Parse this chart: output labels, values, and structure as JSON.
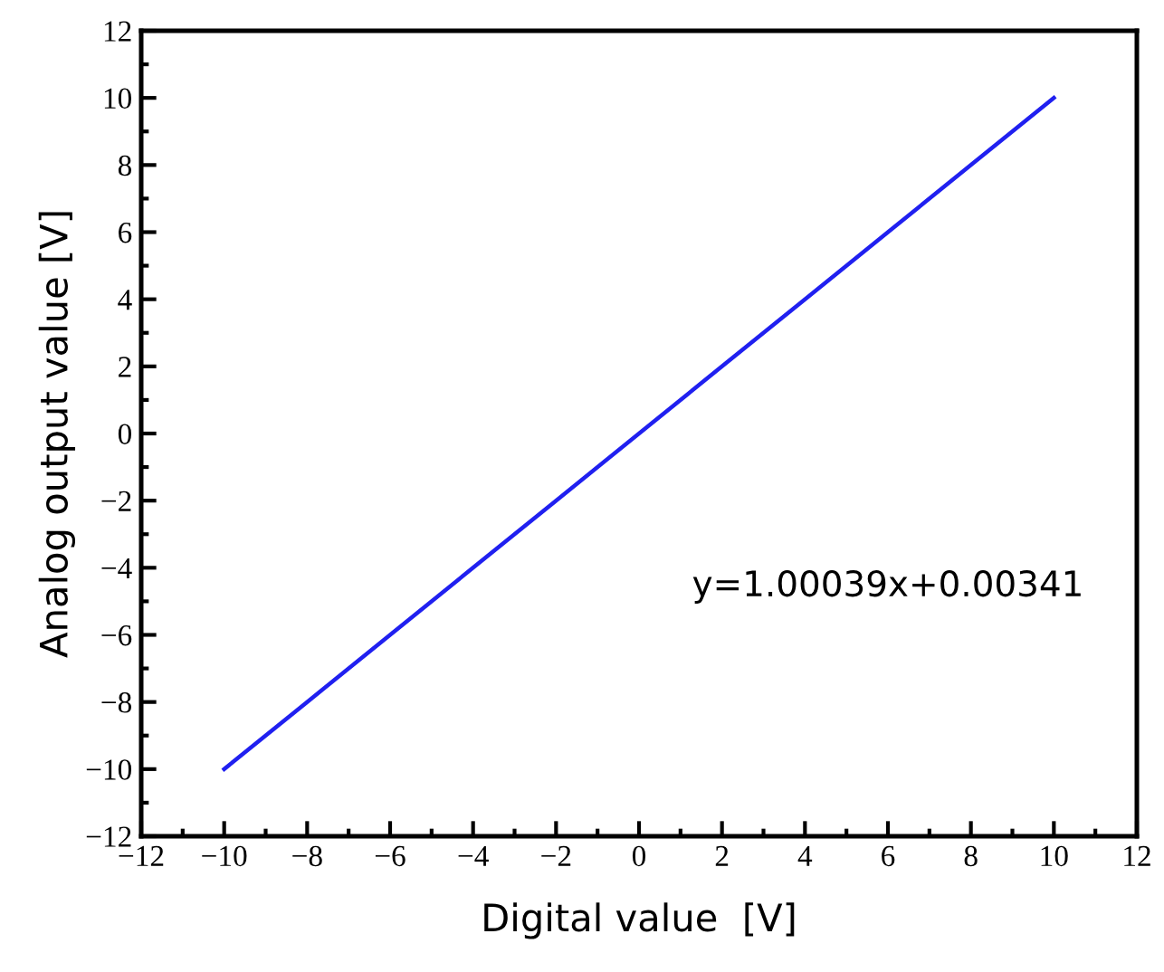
{
  "chart_data": {
    "type": "line",
    "xlabel": "Digital value  [V]",
    "ylabel": "Analog output value [V]",
    "x": [
      -10,
      -8,
      -6,
      -4,
      -2,
      0,
      2,
      4,
      6,
      8,
      10
    ],
    "series": [
      {
        "color": "#2020f0",
        "values": [
          -10,
          -8,
          -6,
          -4,
          -2,
          0,
          2,
          4,
          6,
          8,
          10
        ]
      }
    ],
    "annotations": [
      "y=1.00039x+0.00341"
    ],
    "xlim": [
      -12,
      12
    ],
    "ylim": [
      -12,
      12
    ],
    "xticks": [
      -12,
      -10,
      -8,
      -6,
      -4,
      -2,
      0,
      2,
      4,
      6,
      8,
      10,
      12
    ],
    "yticks": [
      -12,
      -10,
      -8,
      -6,
      -4,
      -2,
      0,
      2,
      4,
      6,
      8,
      10,
      12
    ],
    "grid": false,
    "legend": false,
    "marker": "none",
    "line_style": "solid"
  }
}
